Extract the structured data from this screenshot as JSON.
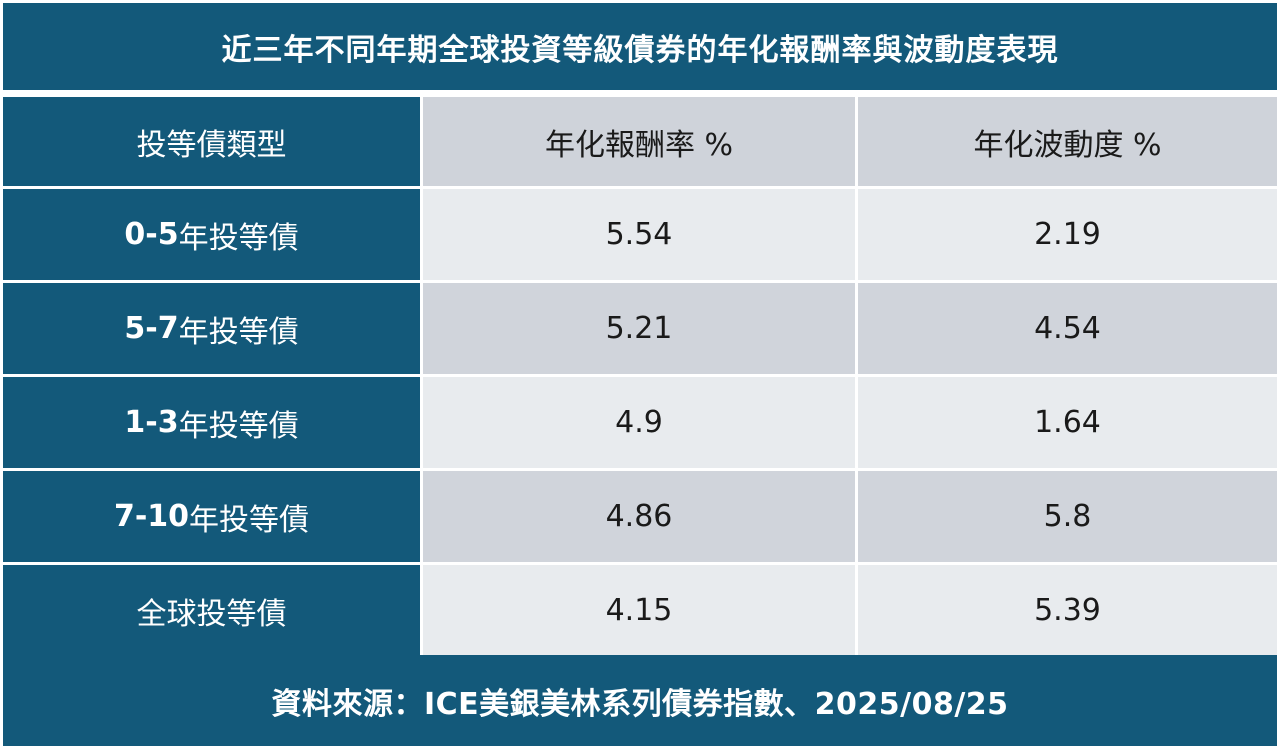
{
  "title": "近三年不同年期全球投資等級債券的年化報酬率與波動度表現",
  "table": {
    "headers": [
      "投等債類型",
      "年化報酬率 %",
      "年化波動度 %"
    ],
    "rows": [
      {
        "label_num": "0-5",
        "label_text": "年投等債",
        "return": "5.54",
        "volatility": "2.19"
      },
      {
        "label_num": "5-7",
        "label_text": "年投等債",
        "return": "5.21",
        "volatility": "4.54"
      },
      {
        "label_num": "1-3",
        "label_text": "年投等債",
        "return": "4.9",
        "volatility": "1.64"
      },
      {
        "label_num": "7-10",
        "label_text": "年投等債",
        "return": "4.86",
        "volatility": "5.8"
      },
      {
        "label_num": "",
        "label_text": "全球投等債",
        "return": "4.15",
        "volatility": "5.39"
      }
    ]
  },
  "source": "資料來源：ICE美銀美林系列債券指數、2025/08/25",
  "colors": {
    "header_blue": "#13597a",
    "cell_light": "#e8ebee",
    "cell_dark": "#d0d4db"
  }
}
